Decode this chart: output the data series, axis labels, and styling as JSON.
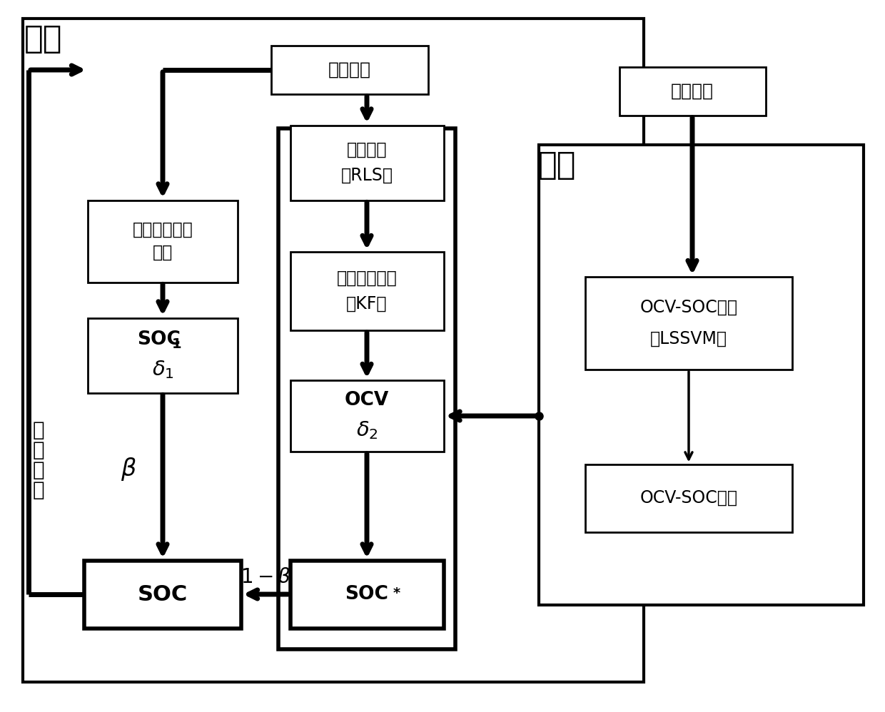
{
  "title_online": "在线",
  "title_offline": "离线",
  "label_update_chars": [
    "更",
    "新",
    "模",
    "型"
  ],
  "box_shiyan_top": "实验数据",
  "box_canshu_line1": "参数辨识",
  "box_canshu_line2": "（RLS）",
  "box_dengxiao_line1": "等效电路模型",
  "box_dengxiao_line2": "（KF）",
  "box_hunhe_line1": "混合高斯过程",
  "box_hunhe_line2": "回归",
  "box_shiyan_right": "实验数据",
  "box_ocvsoc_shift_line1": "OCV-SOC偏移",
  "box_ocvsoc_shift_line2": "（LSSVM）",
  "box_ocvsoc_curve": "OCV-SOC曲线",
  "bg_color": "#ffffff",
  "box_color": "#ffffff",
  "border_color": "#000000",
  "text_color": "#000000"
}
